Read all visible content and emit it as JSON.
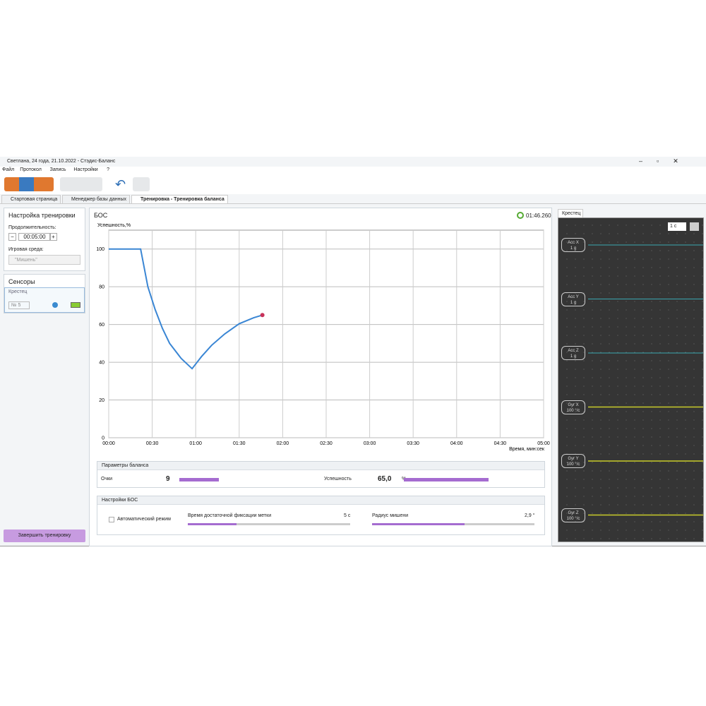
{
  "window": {
    "title": "Светлана, 24 года, 21.10.2022 - Стэдис-Баланс"
  },
  "menu": [
    "Файл",
    "Протокол",
    "Запись",
    "Настройки",
    "?"
  ],
  "tabs": [
    "Стартовая страница",
    "Менеджер базы данных",
    "Тренировка - Тренировка баланса"
  ],
  "training": {
    "title": "Настройка тренировки",
    "duration_label": "Продолжительность:",
    "duration": "00:05:00",
    "env_label": "Игровая среда:",
    "env": "\"Мишень\""
  },
  "sensors": {
    "title": "Сенсоры",
    "location": "Крестец",
    "number": "№ 5"
  },
  "finish_button": "Завершить тренировку",
  "bos": {
    "title": "БОС",
    "timer": "01:46.260"
  },
  "chart_data": {
    "type": "line",
    "y_label": "Успешность,%",
    "x_label": "Время, мин:сек",
    "xlim": [
      0,
      300
    ],
    "ylim": [
      0,
      110
    ],
    "xticks": [
      {
        "value": 0,
        "label": "00:00"
      },
      {
        "value": 30,
        "label": "00:30"
      },
      {
        "value": 60,
        "label": "01:00"
      },
      {
        "value": 90,
        "label": "01:30"
      },
      {
        "value": 120,
        "label": "02:00"
      },
      {
        "value": 150,
        "label": "02:30"
      },
      {
        "value": 180,
        "label": "03:00"
      },
      {
        "value": 210,
        "label": "03:30"
      },
      {
        "value": 240,
        "label": "04:00"
      },
      {
        "value": 270,
        "label": "04:30"
      },
      {
        "value": 300,
        "label": "05:00"
      }
    ],
    "yticks": [
      0,
      20,
      40,
      60,
      80,
      100
    ],
    "grid": true,
    "marker_color": "#c8325a",
    "series": [
      {
        "color": "#3a86d4",
        "x": [
          0,
          22,
          27,
          32,
          37,
          42,
          50,
          57.5,
          64,
          71,
          80,
          90,
          100,
          106
        ],
        "values": [
          100,
          100,
          80,
          68,
          58,
          50,
          42,
          36.6,
          43,
          49,
          55,
          60.4,
          63.6,
          65
        ]
      }
    ]
  },
  "balance": {
    "title": "Параметры баланса",
    "score_label": "Очки",
    "score": 9,
    "success_label": "Успешность",
    "success": "65,0",
    "success_unit": "%"
  },
  "bos_settings": {
    "title": "Настройки БОС",
    "auto_mode": "Автоматический режим",
    "fix_time_label": "Время достаточной фиксации метки",
    "fix_time": "5 с",
    "radius_label": "Радиус мишени",
    "radius": "2,9 °"
  },
  "monitor": {
    "tab": "Крестец",
    "interval": "1 с",
    "channels": [
      [
        "Acc X",
        "1 g"
      ],
      [
        "Acc Y",
        "1 g"
      ],
      [
        "Acc Z",
        "1 g"
      ],
      [
        "Gyr X",
        "100 °/c"
      ],
      [
        "Gyr Y",
        "100 °/c"
      ],
      [
        "Gyr Z",
        "100 °/c"
      ]
    ]
  }
}
